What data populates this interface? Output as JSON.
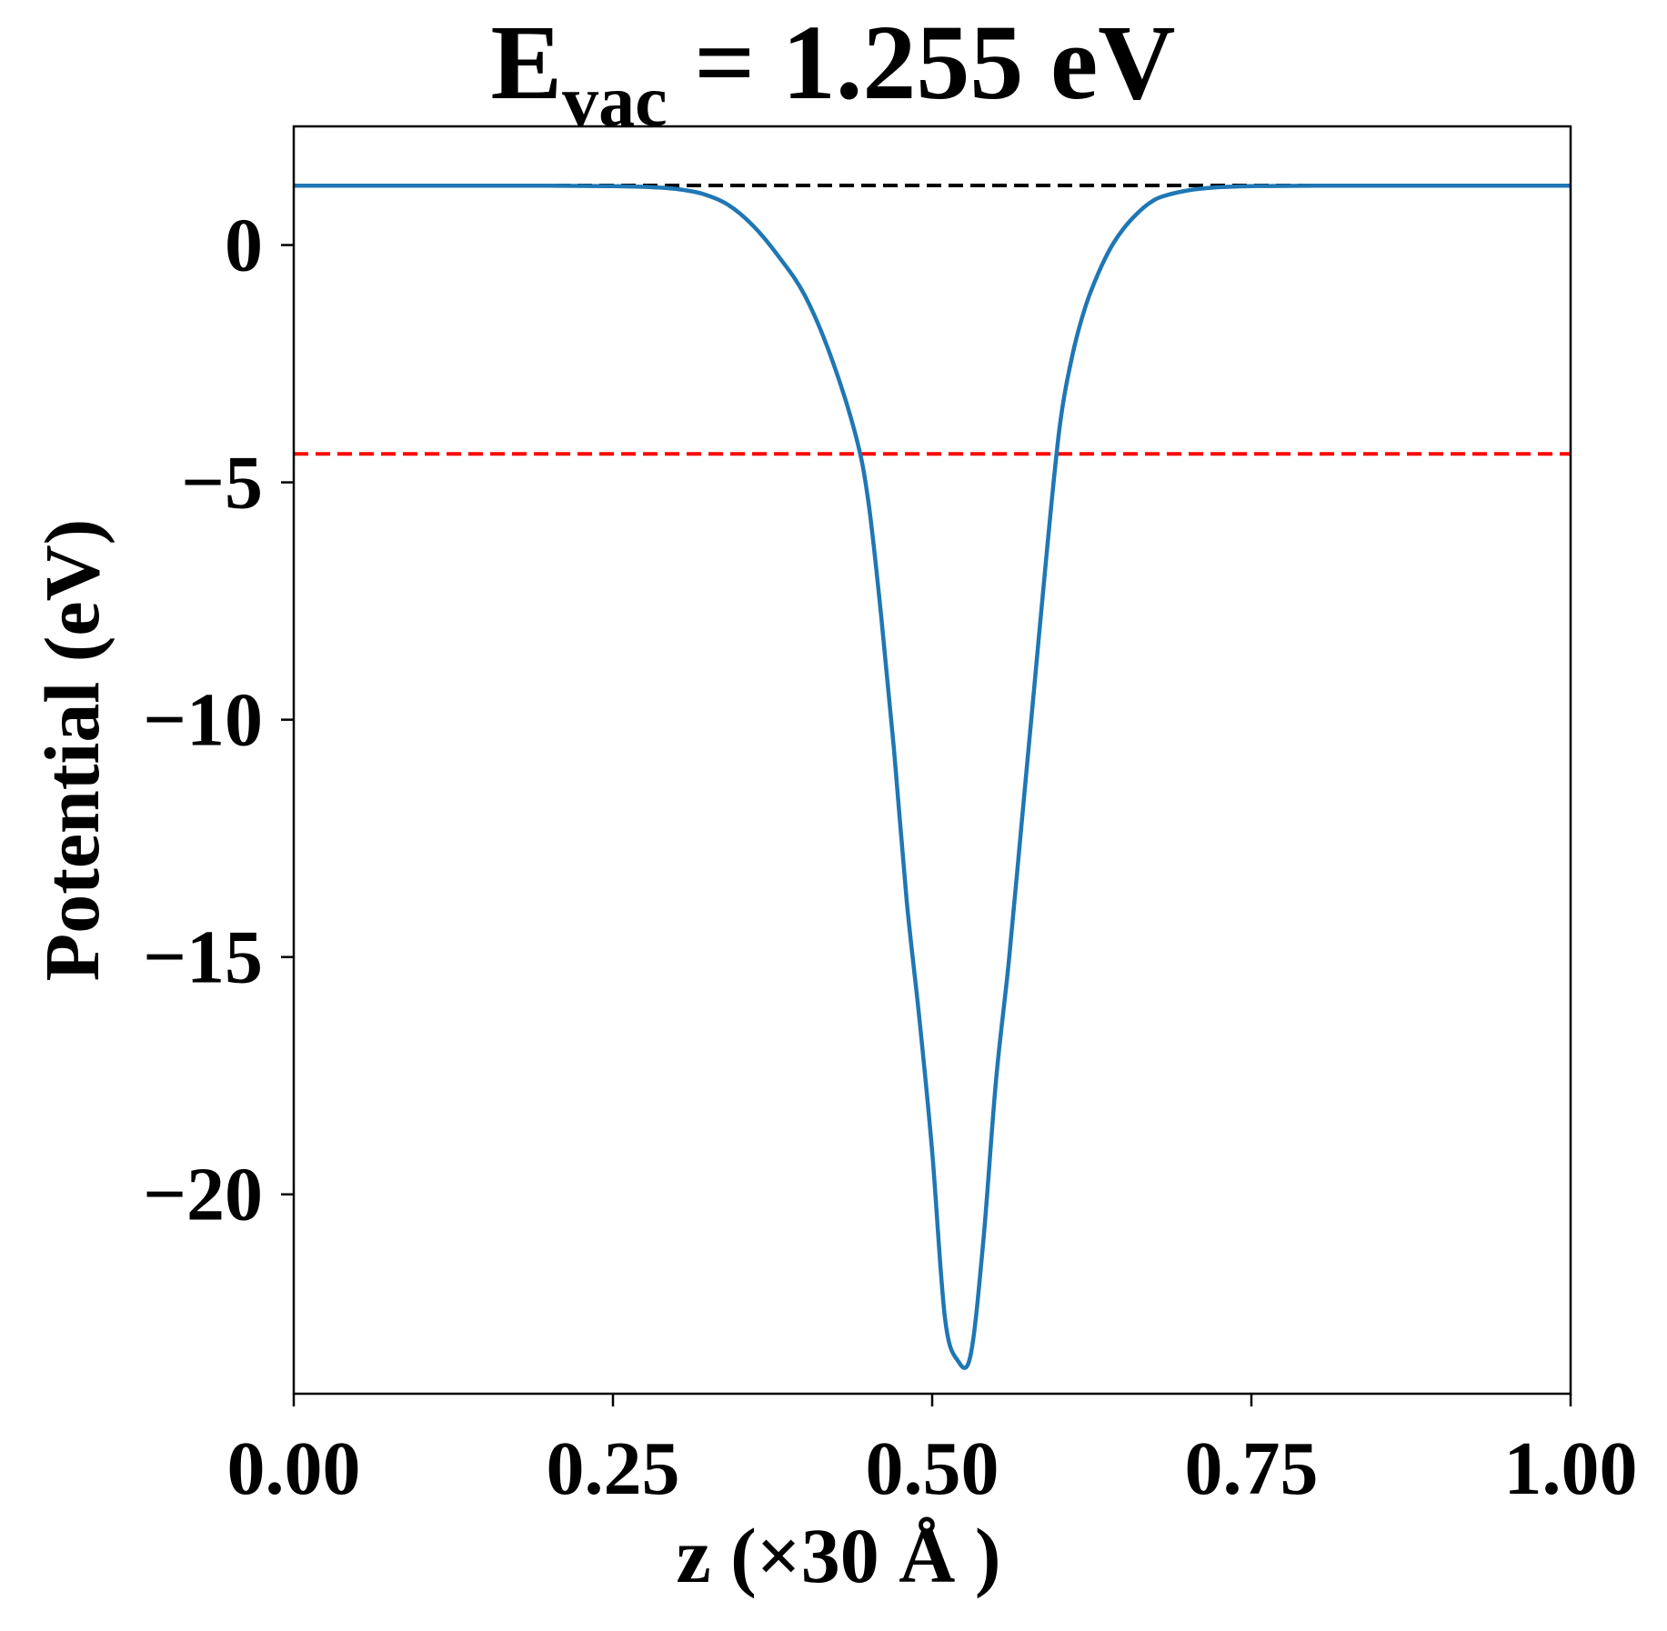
{
  "chart_data": {
    "type": "line",
    "title": {
      "main": "E",
      "subscript": "vac",
      "rest": " = 1.255 eV"
    },
    "xlabel": "z (×30 Å )",
    "ylabel": "Potential (eV)",
    "xlim": [
      0.0,
      1.0
    ],
    "ylim": [
      -24.2,
      2.5
    ],
    "x_ticks": [
      0.0,
      0.25,
      0.5,
      0.75,
      1.0
    ],
    "x_tick_labels": [
      "0.00",
      "0.25",
      "0.50",
      "0.75",
      "1.00"
    ],
    "y_ticks": [
      0,
      -5,
      -10,
      -15,
      -20
    ],
    "y_tick_labels": [
      "0",
      "−5",
      "−10",
      "−15",
      "−20"
    ],
    "grid": false,
    "legend": "none",
    "reference_lines": [
      {
        "y": 1.255,
        "color": "#000000",
        "style": "dashed"
      },
      {
        "y": -4.4,
        "color": "#ff0000",
        "style": "dashed"
      }
    ],
    "series": [
      {
        "color": "#1f77b4",
        "x": [
          0.0,
          0.1,
          0.2,
          0.25,
          0.28,
          0.3,
          0.32,
          0.34,
          0.36,
          0.38,
          0.4,
          0.42,
          0.44,
          0.45,
          0.46,
          0.47,
          0.48,
          0.49,
          0.5,
          0.51,
          0.52,
          0.53,
          0.54,
          0.55,
          0.56,
          0.57,
          0.58,
          0.59,
          0.6,
          0.61,
          0.62,
          0.63,
          0.64,
          0.65,
          0.66,
          0.67,
          0.68,
          0.7,
          0.72,
          0.75,
          0.8,
          0.9,
          1.0
        ],
        "y": [
          1.25,
          1.25,
          1.25,
          1.24,
          1.22,
          1.18,
          1.08,
          0.85,
          0.4,
          -0.25,
          -1.05,
          -2.3,
          -4.0,
          -5.4,
          -7.8,
          -10.6,
          -13.8,
          -16.3,
          -19.1,
          -22.6,
          -23.5,
          -23.4,
          -21.0,
          -17.6,
          -15.1,
          -12.2,
          -9.3,
          -6.4,
          -3.8,
          -2.3,
          -1.3,
          -0.6,
          -0.05,
          0.35,
          0.65,
          0.88,
          1.02,
          1.15,
          1.21,
          1.24,
          1.25,
          1.25,
          1.25
        ]
      }
    ]
  }
}
